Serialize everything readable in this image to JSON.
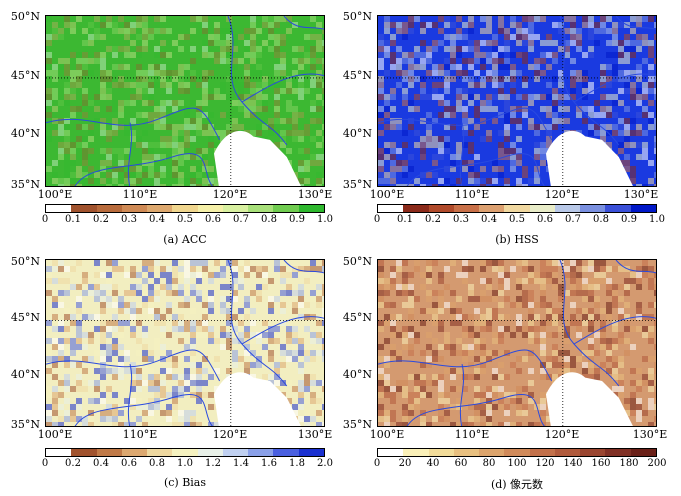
{
  "panels": [
    {
      "id": "acc",
      "caption": "(a) ACC",
      "lat_labels": [
        "50°N",
        "45°N",
        "40°N",
        "35°N"
      ],
      "lon_labels": [
        "100°E",
        "110°E",
        "120°E",
        "130°E"
      ],
      "colorbar": {
        "ticks": [
          "0",
          "0.1",
          "0.2",
          "0.3",
          "0.4",
          "0.5",
          "0.6",
          "0.7",
          "0.8",
          "0.9",
          "1.0"
        ],
        "colors": [
          "#ffffff",
          "#a0522d",
          "#b86b3c",
          "#cf8a55",
          "#dda86e",
          "#f0d68e",
          "#f5f0a8",
          "#d8f0a0",
          "#a8e07a",
          "#70cc50",
          "#2eb82e"
        ]
      },
      "base_color": "#3cb832"
    },
    {
      "id": "hss",
      "caption": "(b) HSS",
      "lat_labels": [
        "50°N",
        "45°N",
        "40°N",
        "35°N"
      ],
      "lon_labels": [
        "100°E",
        "110°E",
        "120°E",
        "130°E"
      ],
      "colorbar": {
        "ticks": [
          "0",
          "0.1",
          "0.2",
          "0.3",
          "0.4",
          "0.5",
          "0.6",
          "0.7",
          "0.8",
          "0.9",
          "1.0"
        ],
        "colors": [
          "#ffffff",
          "#8b2a1a",
          "#b04a2a",
          "#c87048",
          "#dca070",
          "#f0d8a0",
          "#e8ecc8",
          "#b8c8e8",
          "#7a90e0",
          "#3a50d8",
          "#0018c8"
        ]
      },
      "base_color": "#1a3ae0"
    },
    {
      "id": "bias",
      "caption": "(c) Bias",
      "lat_labels": [
        "50°N",
        "45°N",
        "40°N",
        "35°N"
      ],
      "lon_labels": [
        "100°E",
        "110°E",
        "120°E",
        "130°E"
      ],
      "colorbar": {
        "ticks": [
          "0",
          "0.2",
          "0.4",
          "0.6",
          "0.8",
          "1.0",
          "1.2",
          "1.4",
          "1.6",
          "1.8",
          "2.0"
        ],
        "colors": [
          "#ffffff",
          "#a0522d",
          "#c07a48",
          "#dca870",
          "#eed8a0",
          "#f5f2c0",
          "#e8f0e8",
          "#c0d0f0",
          "#8aa0e8",
          "#4a60e0",
          "#1a30d0"
        ]
      },
      "base_color": "#f2eec0"
    },
    {
      "id": "pixel_count",
      "caption": "(d) 像元数",
      "lat_labels": [
        "50°N",
        "45°N",
        "40°N",
        "35°N"
      ],
      "lon_labels": [
        "100°E",
        "110°E",
        "120°E",
        "130°E"
      ],
      "colorbar": {
        "ticks": [
          "0",
          "20",
          "40",
          "60",
          "80",
          "100",
          "120",
          "140",
          "160",
          "180",
          "200"
        ],
        "colors": [
          "#ffffff",
          "#faf0b8",
          "#f2dc9a",
          "#e8c080",
          "#dca46c",
          "#d08a5a",
          "#c2704a",
          "#b05a3c",
          "#9a4530",
          "#803025",
          "#6a2018"
        ]
      },
      "base_color": "#d49a70"
    }
  ]
}
